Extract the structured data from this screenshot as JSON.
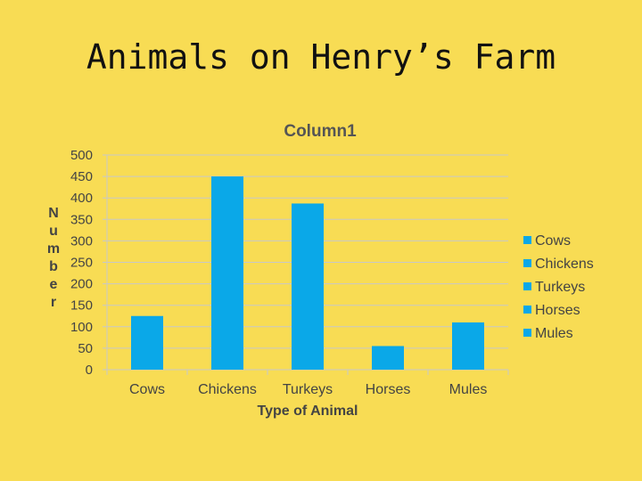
{
  "slide": {
    "title": "Animals on Henry’s Farm"
  },
  "chart_data": {
    "type": "bar",
    "title": "Column1",
    "xlabel": "Type of Animal",
    "ylabel": "Number",
    "categories": [
      "Cows",
      "Chickens",
      "Turkeys",
      "Horses",
      "Mules"
    ],
    "values": [
      125,
      450,
      387,
      55,
      110
    ],
    "ylim": [
      0,
      500
    ],
    "yticks": [
      0,
      50,
      100,
      150,
      200,
      250,
      300,
      350,
      400,
      450,
      500
    ],
    "grid": true,
    "legend": {
      "placement": "right",
      "entries": [
        "Cows",
        "Chickens",
        "Turkeys",
        "Horses",
        "Mules"
      ]
    },
    "colors": {
      "bar": "#0aa8e8",
      "grid": "#c8c8c8",
      "background": "#f8dc54"
    }
  }
}
